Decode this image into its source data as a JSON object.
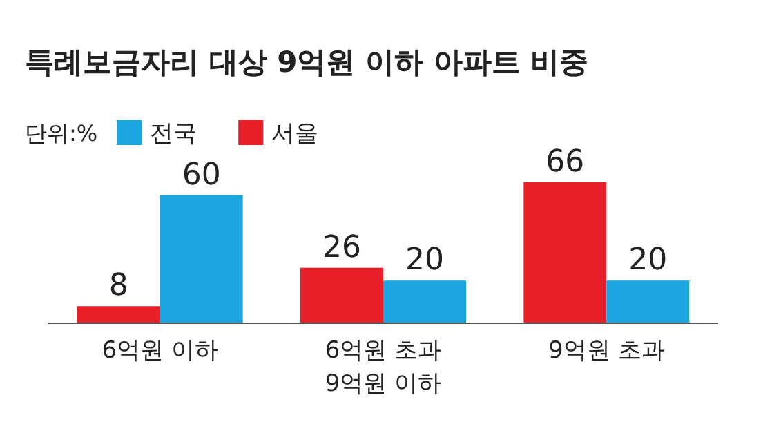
{
  "chart_data": {
    "type": "bar",
    "title": "특례보금자리 대상 9억원 이하 아파트 비중",
    "annotations": [
      "단위:%"
    ],
    "categories": [
      "6억원 이하",
      "6억원 초과\n9억원 이하",
      "9억원 초과"
    ],
    "series": [
      {
        "name": "서울",
        "color": "#e8202a",
        "values": [
          8,
          26,
          66
        ]
      },
      {
        "name": "전국",
        "color": "#1ba6e0",
        "values": [
          60,
          20,
          20
        ]
      }
    ],
    "data_labels": true,
    "legend": "top left"
  }
}
